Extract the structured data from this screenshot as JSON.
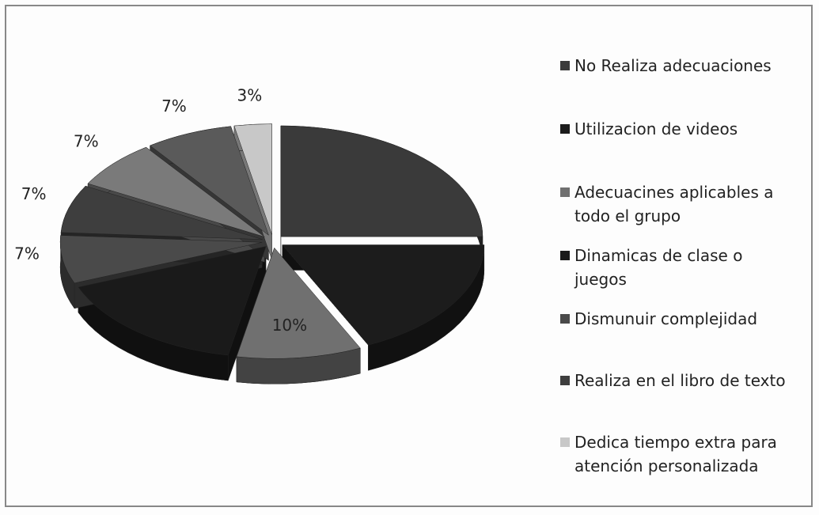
{
  "chart_data": {
    "type": "pie",
    "categories": [
      "No Realiza adecuaciones",
      "Utilizacion de videos",
      "Adecuacines aplicables a todo el grupo",
      "Dinamicas de clase o juegos",
      "Dismunuir complejidad",
      "Realiza en el libro de texto",
      null,
      null,
      "Dedica tiempo extra para atención personalizada"
    ],
    "values": [
      25,
      18,
      10,
      16,
      7,
      7,
      7,
      7,
      3
    ],
    "value_labels": [
      null,
      null,
      "10%",
      null,
      "7%",
      "7%",
      "7%",
      "7%",
      "3%"
    ],
    "colors": [
      "#3a3a3a",
      "#1c1c1c",
      "#707070",
      "#1a1a1a",
      "#4a4a4a",
      "#3e3e3e",
      "#7a7a7a",
      "#5a5a5a",
      "#c8c8c8"
    ]
  }
}
